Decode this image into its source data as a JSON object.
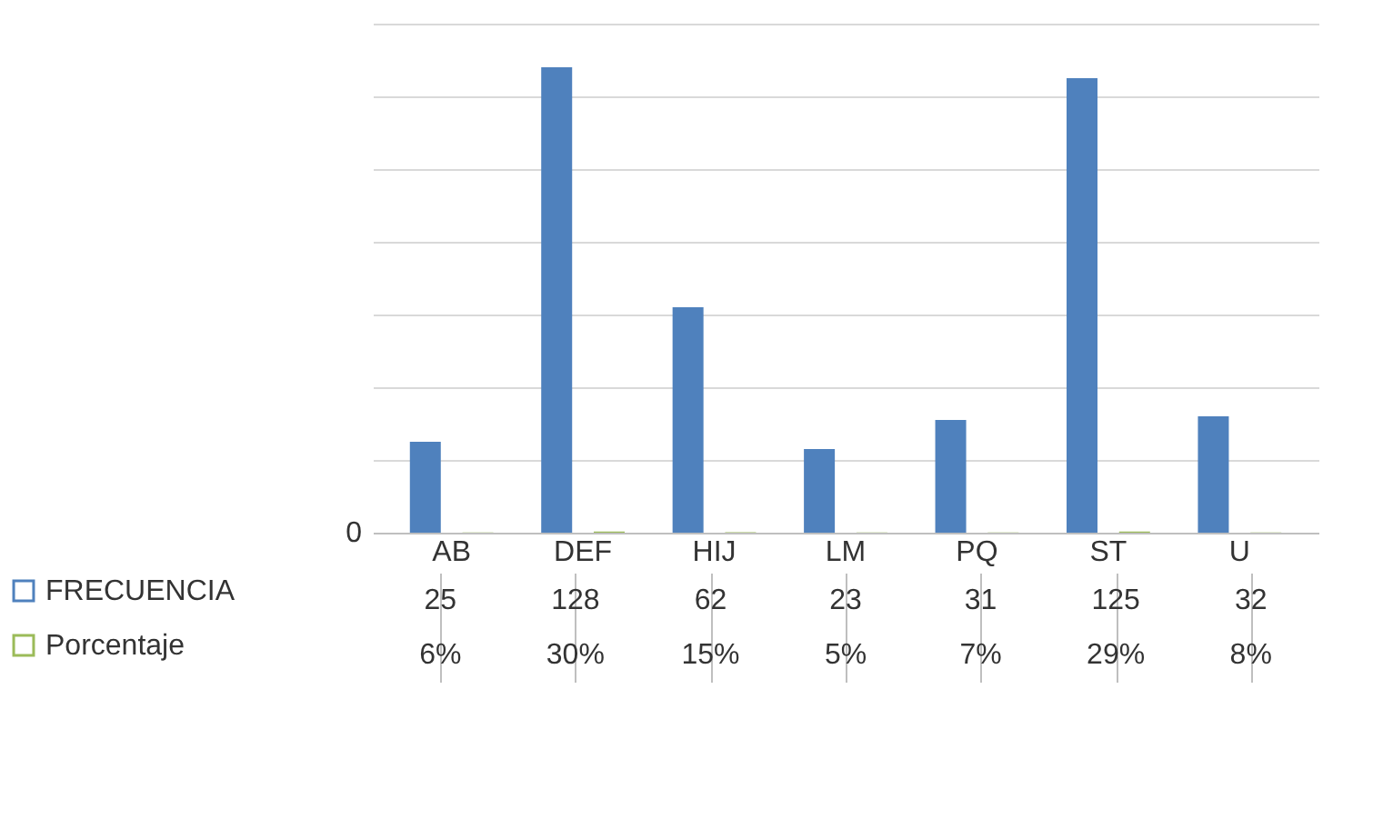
{
  "chart_data": {
    "type": "bar",
    "categories": [
      "AB",
      "DEF",
      "HIJ",
      "LM",
      "PQ",
      "ST",
      "U"
    ],
    "series": [
      {
        "name": "FRECUENCIA",
        "color": "#4f81bd",
        "values": [
          25,
          128,
          62,
          23,
          31,
          125,
          32
        ],
        "value_labels": [
          "25",
          "128",
          "62",
          "23",
          "31",
          "125",
          "32"
        ]
      },
      {
        "name": "Porcentaje",
        "color": "#9bbb59",
        "values": [
          0.06,
          0.3,
          0.15,
          0.05,
          0.07,
          0.29,
          0.08
        ],
        "value_labels": [
          "6%",
          "30%",
          "15%",
          "5%",
          "7%",
          "29%",
          "8%"
        ]
      }
    ],
    "ylim": [
      0,
      140
    ],
    "annotations": [
      "0"
    ],
    "yticks": [
      {
        "value": 0,
        "label": null
      },
      {
        "value": 20,
        "label": null
      },
      {
        "value": 40,
        "label": null
      },
      {
        "value": 60,
        "label": null
      },
      {
        "value": 80,
        "label": null
      },
      {
        "value": 100,
        "label": null
      },
      {
        "value": 120,
        "label": null
      },
      {
        "value": 140,
        "label": null
      }
    ],
    "grid": "y",
    "legend": "bottom"
  }
}
